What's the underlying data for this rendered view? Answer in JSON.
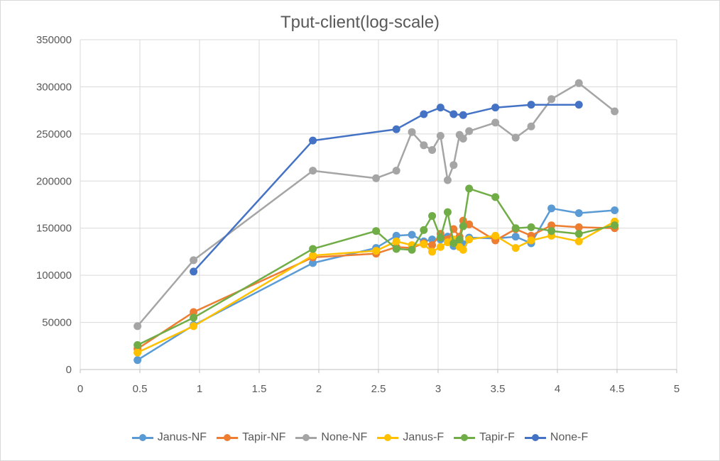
{
  "chart_data": {
    "type": "line",
    "title": "Tput-client(log-scale)",
    "xlabel": "",
    "ylabel": "",
    "xlim": [
      0,
      5
    ],
    "ylim": [
      0,
      350000
    ],
    "x_ticks": [
      0,
      0.5,
      1,
      1.5,
      2,
      2.5,
      3,
      3.5,
      4,
      4.5,
      5
    ],
    "x_tick_labels": [
      "0",
      "0.5",
      "1",
      "1.5",
      "2",
      "2.5",
      "3",
      "3.5",
      "4",
      "4.5",
      "5"
    ],
    "y_ticks": [
      0,
      50000,
      100000,
      150000,
      200000,
      250000,
      300000,
      350000
    ],
    "y_tick_labels": [
      "0",
      "50000",
      "100000",
      "150000",
      "200000",
      "250000",
      "300000",
      "350000"
    ],
    "grid": true,
    "legend_position": "bottom",
    "series": [
      {
        "name": "Janus-NF",
        "color": "#5b9bd5",
        "points": [
          [
            0.48,
            10000
          ],
          [
            0.95,
            47000
          ],
          [
            1.95,
            113000
          ],
          [
            2.48,
            129000
          ],
          [
            2.65,
            142000
          ],
          [
            2.78,
            143000
          ],
          [
            2.88,
            136000
          ],
          [
            2.95,
            138000
          ],
          [
            3.02,
            138000
          ],
          [
            3.08,
            141000
          ],
          [
            3.13,
            131000
          ],
          [
            3.18,
            135000
          ],
          [
            3.21,
            133000
          ],
          [
            3.26,
            140000
          ],
          [
            3.48,
            139000
          ],
          [
            3.65,
            141000
          ],
          [
            3.78,
            134000
          ],
          [
            3.95,
            171000
          ],
          [
            4.18,
            166000
          ],
          [
            4.48,
            169000
          ]
        ]
      },
      {
        "name": "Tapir-NF",
        "color": "#ed7d31",
        "points": [
          [
            0.48,
            22000
          ],
          [
            0.95,
            61000
          ],
          [
            1.95,
            119000
          ],
          [
            2.48,
            123000
          ],
          [
            2.65,
            130000
          ],
          [
            2.78,
            129000
          ],
          [
            2.88,
            134000
          ],
          [
            2.95,
            132000
          ],
          [
            3.02,
            144000
          ],
          [
            3.08,
            138000
          ],
          [
            3.13,
            149000
          ],
          [
            3.18,
            141000
          ],
          [
            3.21,
            158000
          ],
          [
            3.26,
            154000
          ],
          [
            3.48,
            137000
          ],
          [
            3.65,
            149000
          ],
          [
            3.78,
            142000
          ],
          [
            3.95,
            153000
          ],
          [
            4.18,
            151000
          ],
          [
            4.48,
            150000
          ]
        ]
      },
      {
        "name": "None-NF",
        "color": "#a5a5a5",
        "points": [
          [
            0.48,
            46000
          ],
          [
            0.95,
            116000
          ],
          [
            1.95,
            211000
          ],
          [
            2.48,
            203000
          ],
          [
            2.65,
            211000
          ],
          [
            2.78,
            252000
          ],
          [
            2.88,
            238000
          ],
          [
            2.95,
            233000
          ],
          [
            3.02,
            248000
          ],
          [
            3.08,
            201000
          ],
          [
            3.13,
            217000
          ],
          [
            3.18,
            249000
          ],
          [
            3.21,
            245000
          ],
          [
            3.26,
            253000
          ],
          [
            3.48,
            262000
          ],
          [
            3.65,
            246000
          ],
          [
            3.78,
            258000
          ],
          [
            3.95,
            287000
          ],
          [
            4.18,
            304000
          ],
          [
            4.48,
            274000
          ]
        ]
      },
      {
        "name": "Janus-F",
        "color": "#ffc000",
        "points": [
          [
            0.48,
            18000
          ],
          [
            0.95,
            46000
          ],
          [
            1.95,
            121000
          ],
          [
            2.48,
            126000
          ],
          [
            2.65,
            136000
          ],
          [
            2.78,
            132000
          ],
          [
            2.88,
            133000
          ],
          [
            2.95,
            125000
          ],
          [
            3.02,
            130000
          ],
          [
            3.08,
            135000
          ],
          [
            3.13,
            138000
          ],
          [
            3.18,
            130000
          ],
          [
            3.21,
            127000
          ],
          [
            3.26,
            138000
          ],
          [
            3.48,
            142000
          ],
          [
            3.65,
            129000
          ],
          [
            3.78,
            137000
          ],
          [
            3.95,
            142000
          ],
          [
            4.18,
            136000
          ],
          [
            4.48,
            157000
          ]
        ]
      },
      {
        "name": "Tapir-F",
        "color": "#70ad47",
        "points": [
          [
            0.48,
            26000
          ],
          [
            0.95,
            55000
          ],
          [
            1.95,
            128000
          ],
          [
            2.48,
            147000
          ],
          [
            2.65,
            128000
          ],
          [
            2.78,
            127000
          ],
          [
            2.88,
            148000
          ],
          [
            2.95,
            163000
          ],
          [
            3.02,
            140000
          ],
          [
            3.08,
            167000
          ],
          [
            3.13,
            134000
          ],
          [
            3.18,
            138000
          ],
          [
            3.21,
            152000
          ],
          [
            3.26,
            192000
          ],
          [
            3.48,
            183000
          ],
          [
            3.65,
            150000
          ],
          [
            3.78,
            151000
          ],
          [
            3.95,
            147000
          ],
          [
            4.18,
            144000
          ],
          [
            4.48,
            153000
          ]
        ]
      },
      {
        "name": "None-F",
        "color": "#4472c4",
        "points": [
          [
            0.95,
            104000
          ],
          [
            1.95,
            243000
          ],
          [
            2.65,
            255000
          ],
          [
            2.88,
            271000
          ],
          [
            3.02,
            278000
          ],
          [
            3.13,
            271000
          ],
          [
            3.21,
            270000
          ],
          [
            3.48,
            278000
          ],
          [
            3.78,
            281000
          ],
          [
            4.18,
            281000
          ]
        ]
      }
    ]
  }
}
